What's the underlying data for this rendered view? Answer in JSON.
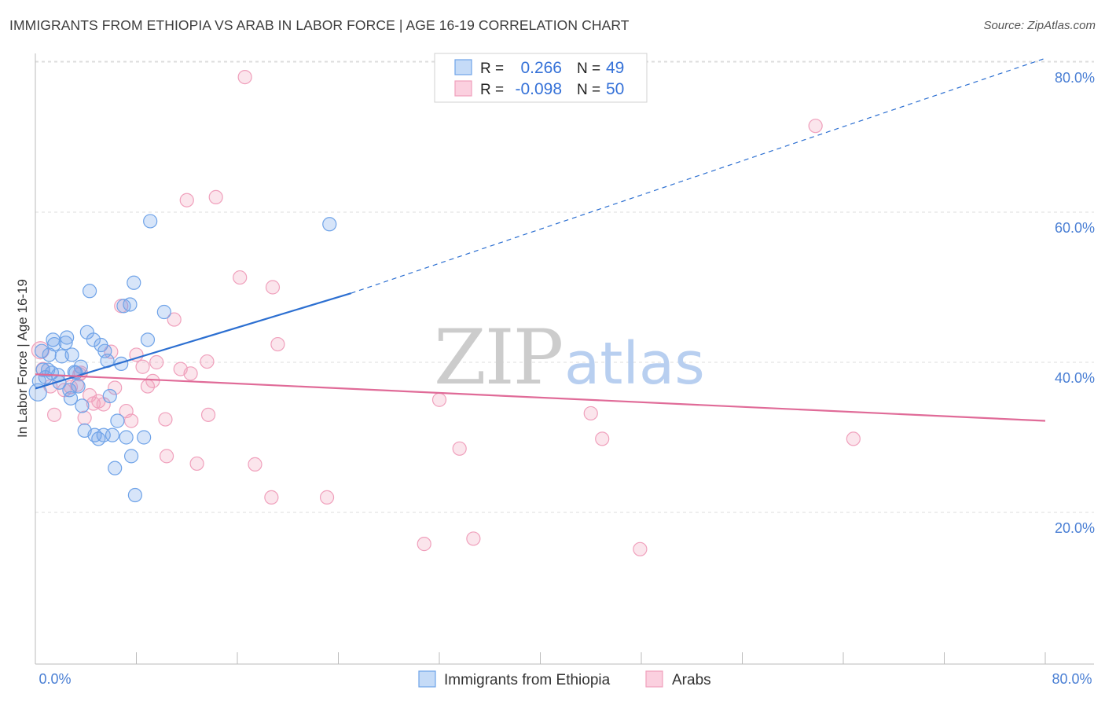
{
  "title": "IMMIGRANTS FROM ETHIOPIA VS ARAB IN LABOR FORCE | AGE 16-19 CORRELATION CHART",
  "source": "Source: ZipAtlas.com",
  "watermark": {
    "zip": "ZIP",
    "atlas": "atlas"
  },
  "colors": {
    "blue": "#6fa3e8",
    "blue_line": "#2c6fd1",
    "pink": "#f0a0bc",
    "pink_line": "#e06b98",
    "grid": "#dddddd",
    "tick": "#4a7fd4"
  },
  "legend": {
    "r_label": "R =",
    "n_label": "N =",
    "rows": [
      {
        "series": "blue",
        "r": "0.266",
        "n": "49"
      },
      {
        "series": "pink",
        "r": "-0.098",
        "n": "50"
      }
    ]
  },
  "chart_data": {
    "type": "scatter",
    "title": "IMMIGRANTS FROM ETHIOPIA VS ARAB IN LABOR FORCE | AGE 16-19 CORRELATION CHART",
    "xlabel": "",
    "ylabel": "In Labor Force | Age 16-19",
    "xlim": [
      0,
      80
    ],
    "ylim": [
      0,
      84
    ],
    "x_tick_labels": {
      "left": "0.0%",
      "right": "80.0%"
    },
    "y_ticks": [
      {
        "value": 20,
        "label": "20.0%"
      },
      {
        "value": 40,
        "label": "40.0%"
      },
      {
        "value": 60,
        "label": "60.0%"
      },
      {
        "value": 80,
        "label": "80.0%"
      }
    ],
    "series": [
      {
        "name": "Immigrants from Ethiopia",
        "color": "blue",
        "trend": {
          "x0": 0,
          "y0": 36.5,
          "x1": 25,
          "y1": 49.2,
          "dash_to_x": 80,
          "dash_to_y": 80.5
        },
        "points": [
          [
            0.2,
            36
          ],
          [
            0.3,
            37.5
          ],
          [
            0.5,
            41.5
          ],
          [
            0.6,
            39
          ],
          [
            0.8,
            38
          ],
          [
            1.0,
            39
          ],
          [
            1.1,
            41
          ],
          [
            1.3,
            38.6
          ],
          [
            1.4,
            43
          ],
          [
            1.5,
            42.4
          ],
          [
            1.8,
            38.3
          ],
          [
            1.9,
            37.3
          ],
          [
            2.1,
            40.8
          ],
          [
            2.4,
            42.6
          ],
          [
            2.5,
            43.3
          ],
          [
            2.7,
            36.3
          ],
          [
            2.8,
            35.2
          ],
          [
            2.9,
            41
          ],
          [
            3.1,
            38.7
          ],
          [
            3.2,
            38.6
          ],
          [
            3.4,
            36.8
          ],
          [
            3.6,
            39.4
          ],
          [
            3.7,
            34.2
          ],
          [
            3.9,
            30.9
          ],
          [
            4.1,
            44
          ],
          [
            4.3,
            49.5
          ],
          [
            4.6,
            43
          ],
          [
            4.7,
            30.3
          ],
          [
            5.0,
            29.8
          ],
          [
            5.2,
            42.3
          ],
          [
            5.4,
            30.3
          ],
          [
            5.5,
            41.5
          ],
          [
            5.7,
            40.2
          ],
          [
            5.9,
            35.5
          ],
          [
            6.1,
            30.3
          ],
          [
            6.3,
            25.9
          ],
          [
            6.5,
            32.2
          ],
          [
            6.8,
            39.8
          ],
          [
            7.0,
            47.5
          ],
          [
            7.2,
            30
          ],
          [
            7.5,
            47.7
          ],
          [
            7.6,
            27.5
          ],
          [
            7.8,
            50.6
          ],
          [
            7.9,
            22.3
          ],
          [
            8.6,
            30
          ],
          [
            8.9,
            43
          ],
          [
            9.1,
            58.8
          ],
          [
            10.2,
            46.7
          ],
          [
            23.3,
            58.4
          ]
        ]
      },
      {
        "name": "Arabs",
        "color": "pink",
        "trend": {
          "x0": 0,
          "y0": 38.4,
          "x1": 80,
          "y1": 32.2
        },
        "points": [
          [
            0.4,
            41.6
          ],
          [
            0.6,
            39.1
          ],
          [
            1.2,
            36.8
          ],
          [
            1.5,
            33
          ],
          [
            2.3,
            36.3
          ],
          [
            2.8,
            36.7
          ],
          [
            3.3,
            37
          ],
          [
            3.5,
            38.4
          ],
          [
            3.6,
            38.6
          ],
          [
            3.9,
            32.6
          ],
          [
            4.3,
            35.6
          ],
          [
            4.6,
            34.5
          ],
          [
            5.0,
            34.8
          ],
          [
            5.4,
            34.4
          ],
          [
            6.0,
            41.4
          ],
          [
            6.3,
            36.6
          ],
          [
            6.8,
            47.5
          ],
          [
            7.2,
            33.5
          ],
          [
            7.6,
            32.2
          ],
          [
            8.0,
            41
          ],
          [
            8.5,
            39.4
          ],
          [
            8.9,
            36.8
          ],
          [
            9.3,
            37.5
          ],
          [
            9.6,
            40
          ],
          [
            10.3,
            32.4
          ],
          [
            10.4,
            27.5
          ],
          [
            11.0,
            45.7
          ],
          [
            11.5,
            39.1
          ],
          [
            12.0,
            61.6
          ],
          [
            12.3,
            38.5
          ],
          [
            12.8,
            26.5
          ],
          [
            13.6,
            40.1
          ],
          [
            13.7,
            33
          ],
          [
            14.3,
            62
          ],
          [
            16.2,
            51.3
          ],
          [
            16.6,
            78
          ],
          [
            17.4,
            26.4
          ],
          [
            18.7,
            22
          ],
          [
            18.8,
            50
          ],
          [
            19.2,
            42.4
          ],
          [
            23.1,
            22
          ],
          [
            30.8,
            15.8
          ],
          [
            32.0,
            35
          ],
          [
            33.6,
            28.5
          ],
          [
            34.7,
            16.5
          ],
          [
            44.0,
            33.2
          ],
          [
            44.9,
            29.8
          ],
          [
            47.9,
            15.1
          ],
          [
            61.8,
            71.5
          ],
          [
            64.8,
            29.8
          ]
        ]
      }
    ]
  },
  "bottom_legend": [
    {
      "series": "blue",
      "label": "Immigrants from Ethiopia"
    },
    {
      "series": "pink",
      "label": "Arabs"
    }
  ]
}
